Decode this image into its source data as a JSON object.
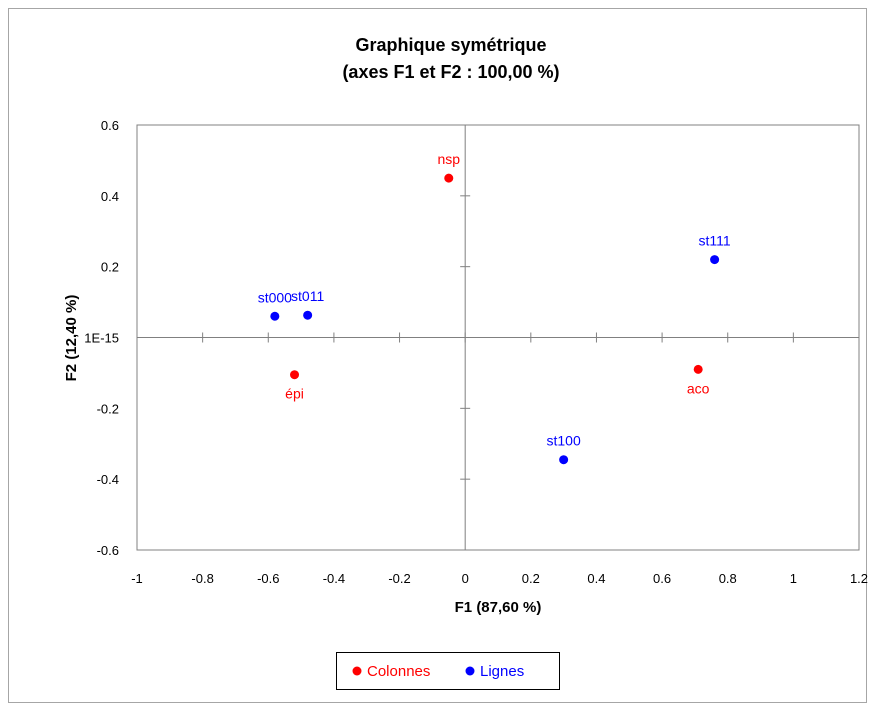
{
  "chart_data": {
    "type": "scatter",
    "title": "Graphique symétrique",
    "subtitle": "(axes F1 et F2 : 100,00 %)",
    "xlabel": "F1 (87,60 %)",
    "ylabel": "F2 (12,40 %)",
    "xlim": [
      -1,
      1.2
    ],
    "ylim": [
      -0.6,
      0.6
    ],
    "x_ticks": [
      "-1",
      "-0.8",
      "-0.6",
      "-0.4",
      "-0.2",
      "0",
      "0.2",
      "0.4",
      "0.6",
      "0.8",
      "1",
      "1.2"
    ],
    "y_ticks": [
      "0.6",
      "0.4",
      "0.2",
      "1E-15",
      "-0.2",
      "-0.4",
      "-0.6"
    ],
    "legend_position": "bottom",
    "series": [
      {
        "name": "Colonnes",
        "color": "#ff0000",
        "points": [
          {
            "label": "nsp",
            "x": -0.05,
            "y": 0.45
          },
          {
            "label": "épi",
            "x": -0.52,
            "y": -0.105
          },
          {
            "label": "aco",
            "x": 0.71,
            "y": -0.09
          }
        ]
      },
      {
        "name": "Lignes",
        "color": "#0000ff",
        "points": [
          {
            "label": "st000",
            "x": -0.58,
            "y": 0.06
          },
          {
            "label": "st011",
            "x": -0.48,
            "y": 0.063
          },
          {
            "label": "st111",
            "x": 0.76,
            "y": 0.22
          },
          {
            "label": "st100",
            "x": 0.3,
            "y": -0.345
          }
        ]
      }
    ]
  }
}
